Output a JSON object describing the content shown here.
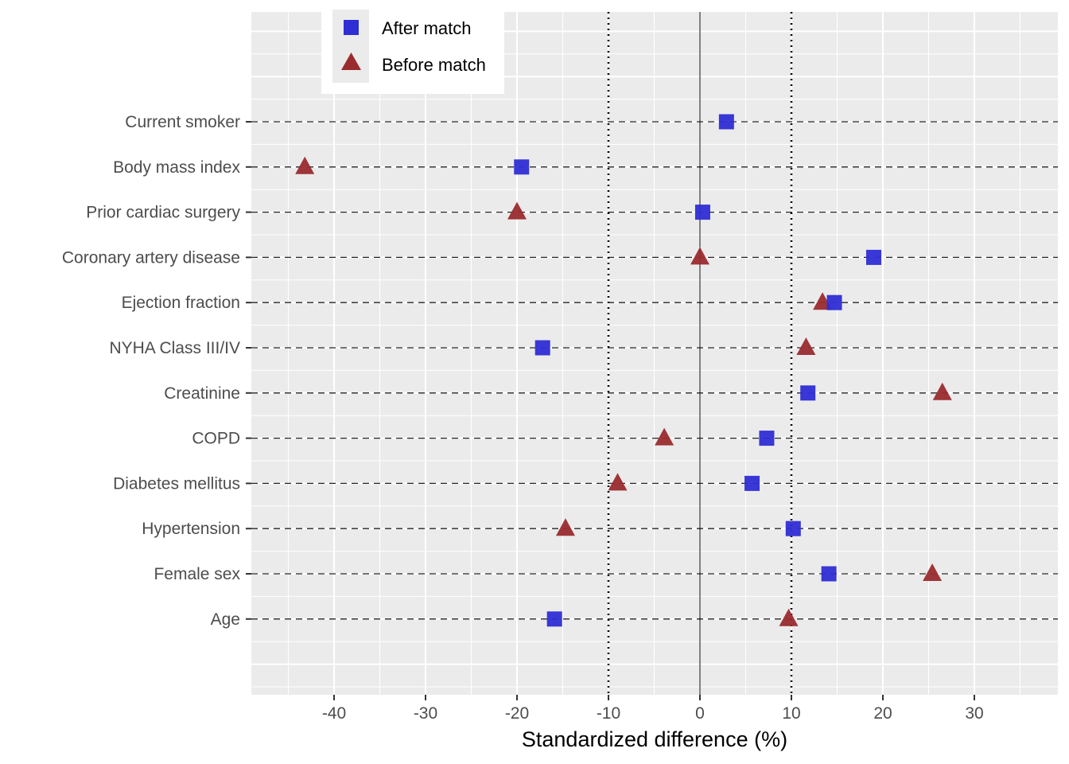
{
  "chart_data": {
    "type": "scatter",
    "title": "",
    "xlabel": "Standardized difference (%)",
    "ylabel": "",
    "xlim": [
      -49,
      39
    ],
    "xticks": [
      -40,
      -30,
      -20,
      -10,
      0,
      10,
      20,
      30
    ],
    "reference_lines": {
      "solid": [
        0
      ],
      "dotted": [
        -10,
        10
      ]
    },
    "grid": true,
    "legend_position": "top-left-inside",
    "categories": [
      "Current smoker",
      "Body mass index",
      "Prior cardiac surgery",
      "Coronary artery disease",
      "Ejection fraction",
      "NYHA Class III/IV",
      "Creatinine",
      "COPD",
      "Diabetes mellitus",
      "Hypertension",
      "Female sex",
      "Age"
    ],
    "series": [
      {
        "name": "After match",
        "marker": "square",
        "color": "#2f2dd4",
        "values": [
          2.9,
          -19.5,
          0.3,
          19.0,
          14.7,
          -17.2,
          11.8,
          7.3,
          5.7,
          10.2,
          14.1,
          -15.9
        ]
      },
      {
        "name": "Before match",
        "marker": "triangle",
        "color": "#9a2b2e",
        "values": [
          null,
          -43.2,
          -20.0,
          0.0,
          13.4,
          11.6,
          26.5,
          -3.9,
          -9.0,
          -14.7,
          25.4,
          9.7
        ]
      }
    ]
  }
}
